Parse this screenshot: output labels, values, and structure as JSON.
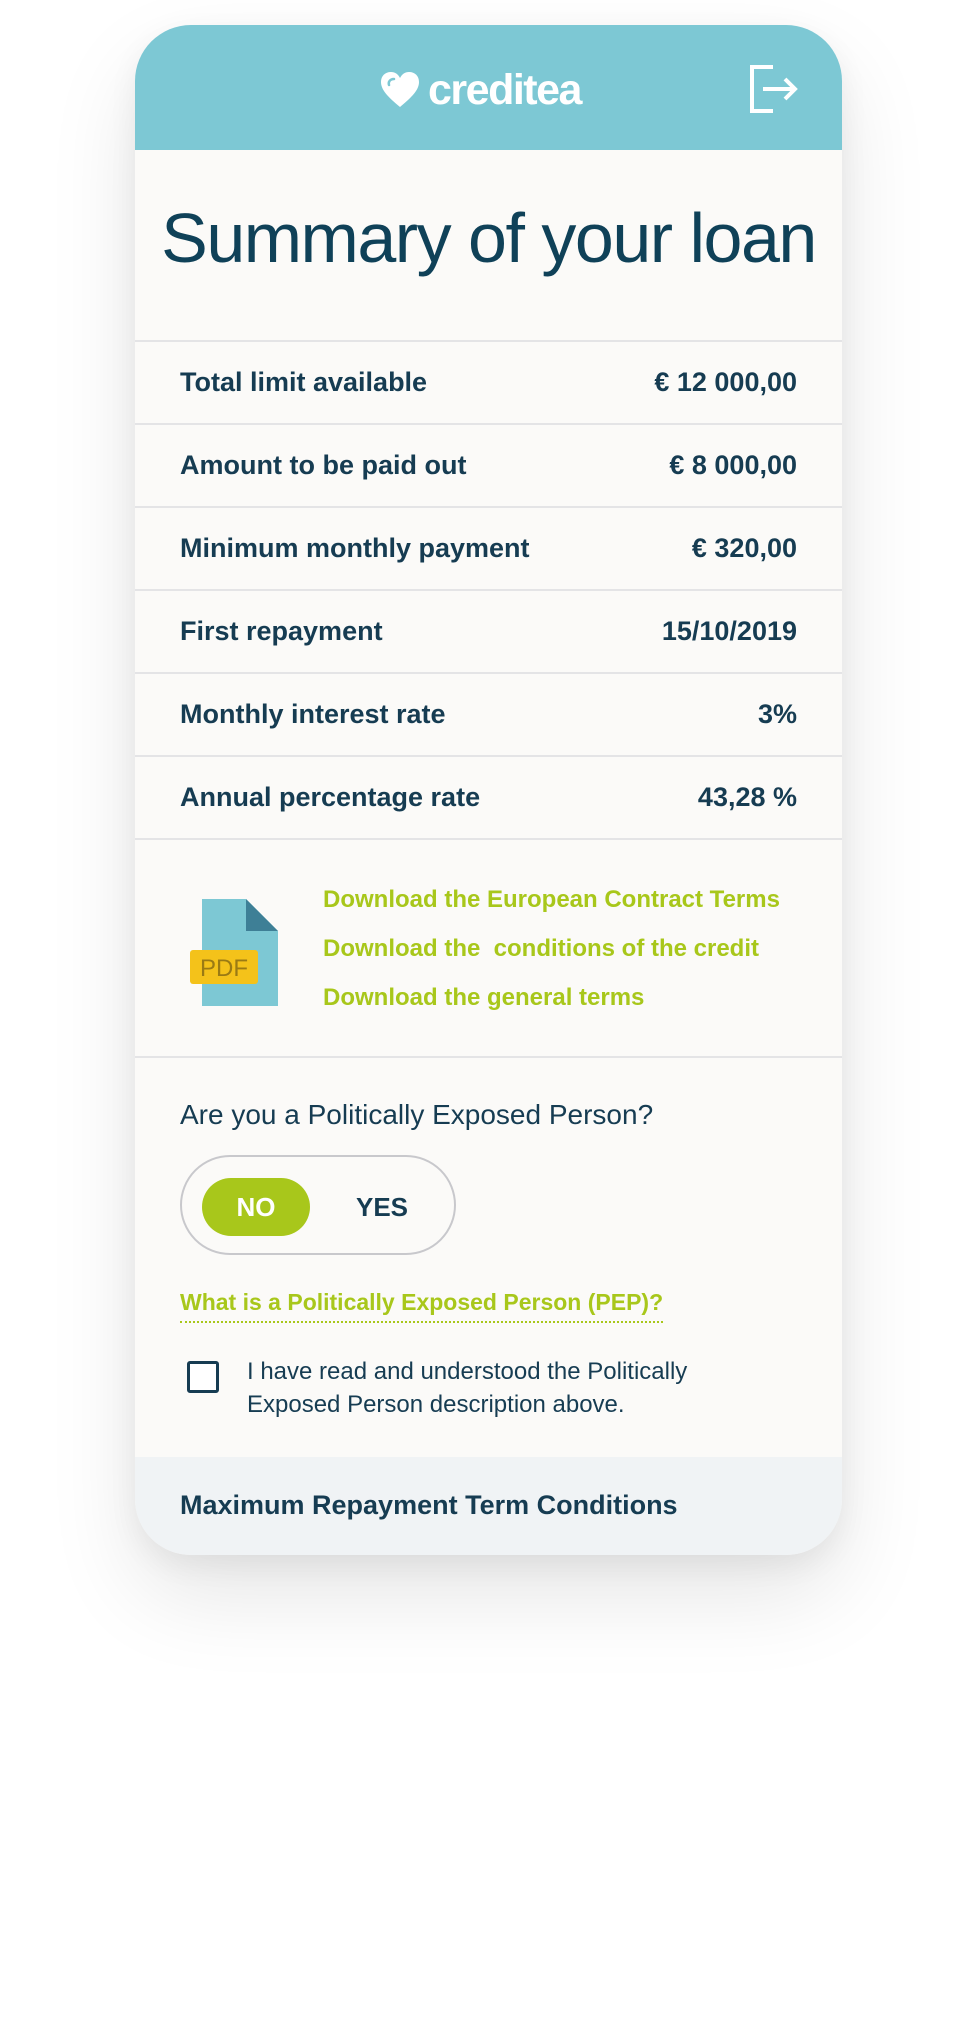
{
  "header": {
    "brand": "creditea",
    "colors": {
      "header_bg": "#7dc8d4",
      "accent": "#a8c71b",
      "text": "#163c52"
    },
    "logout_icon": "logout-icon"
  },
  "title": "Summary of your loan",
  "summary_rows": [
    {
      "label": "Total limit available",
      "value": "€ 12 000,00"
    },
    {
      "label": "Amount to be paid out",
      "value": "€ 8 000,00"
    },
    {
      "label": "Minimum monthly payment",
      "value": "€ 320,00"
    },
    {
      "label": "First repayment",
      "value": "15/10/2019"
    },
    {
      "label": "Monthly interest rate",
      "value": "3%"
    },
    {
      "label": "Annual percentage rate",
      "value": "43,28 %"
    }
  ],
  "documents": {
    "icon_label": "PDF",
    "links": [
      "Download the European Contract Terms",
      "Download the  conditions of the credit",
      "Download the general terms"
    ]
  },
  "pep": {
    "question": "Are you a Politically Exposed Person?",
    "toggle": {
      "no_label": "NO",
      "yes_label": "YES",
      "selected": "NO"
    },
    "info_link": "What is a Politically Exposed Person (PEP)?",
    "checkbox_label": "I have read and understood the Politically Exposed Person description above.",
    "checkbox_checked": false
  },
  "footer": {
    "label": "Maximum Repayment Term Conditions"
  }
}
